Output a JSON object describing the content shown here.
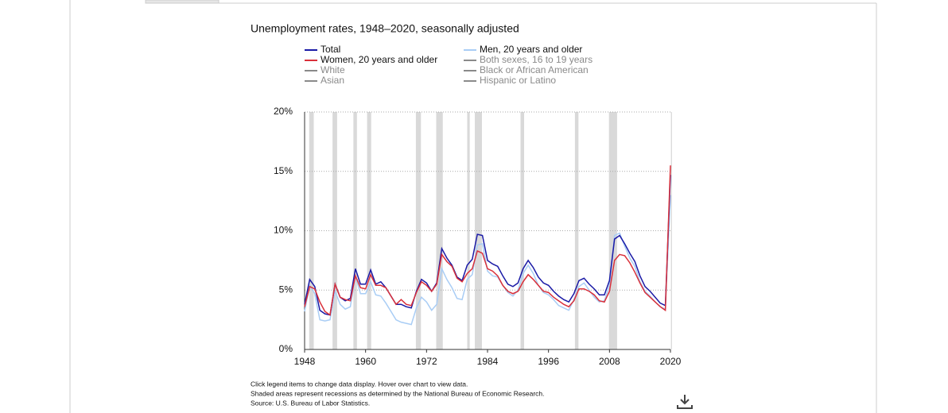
{
  "chart_data": {
    "type": "line",
    "title": "Unemployment rates, 1948–2020, seasonally adjusted",
    "x": [
      1948,
      1949,
      1950,
      1951,
      1952,
      1953,
      1954,
      1955,
      1956,
      1957,
      1958,
      1959,
      1960,
      1961,
      1962,
      1963,
      1964,
      1965,
      1966,
      1967,
      1968,
      1969,
      1970,
      1971,
      1972,
      1973,
      1974,
      1975,
      1976,
      1977,
      1978,
      1979,
      1980,
      1981,
      1982,
      1983,
      1984,
      1985,
      1986,
      1987,
      1988,
      1989,
      1990,
      1991,
      1992,
      1993,
      1994,
      1995,
      1996,
      1997,
      1998,
      1999,
      2000,
      2001,
      2002,
      2003,
      2004,
      2005,
      2006,
      2007,
      2008,
      2009,
      2010,
      2011,
      2012,
      2013,
      2014,
      2015,
      2016,
      2017,
      2018,
      2019,
      2020
    ],
    "series": [
      {
        "name": "Total",
        "color": "#1a1aa6",
        "values": [
          3.8,
          5.9,
          5.3,
          3.3,
          3.0,
          2.9,
          5.5,
          4.4,
          4.1,
          4.3,
          6.8,
          5.5,
          5.5,
          6.7,
          5.5,
          5.7,
          5.2,
          4.5,
          3.8,
          3.8,
          3.6,
          3.5,
          4.9,
          5.9,
          5.6,
          4.9,
          5.6,
          8.5,
          7.7,
          7.1,
          6.1,
          5.8,
          7.1,
          7.6,
          9.7,
          9.6,
          7.5,
          7.2,
          7.0,
          6.2,
          5.5,
          5.3,
          5.6,
          6.8,
          7.5,
          6.9,
          6.1,
          5.6,
          5.4,
          4.9,
          4.5,
          4.2,
          4.0,
          4.7,
          5.8,
          6.0,
          5.5,
          5.1,
          4.6,
          4.6,
          5.8,
          9.3,
          9.6,
          8.9,
          8.1,
          7.4,
          6.2,
          5.3,
          4.9,
          4.4,
          3.9,
          3.7,
          14.7
        ]
      },
      {
        "name": "Men, 20 years and older",
        "color": "#a9cdf5",
        "values": [
          3.2,
          5.4,
          4.7,
          2.5,
          2.4,
          2.5,
          4.9,
          3.8,
          3.4,
          3.6,
          6.2,
          4.7,
          4.7,
          5.7,
          4.6,
          4.5,
          3.9,
          3.2,
          2.5,
          2.3,
          2.2,
          2.1,
          3.5,
          4.4,
          4.0,
          3.3,
          3.8,
          6.8,
          5.9,
          5.2,
          4.3,
          4.2,
          5.9,
          6.3,
          8.8,
          8.9,
          6.6,
          6.2,
          6.1,
          5.4,
          4.8,
          4.5,
          5.0,
          6.4,
          7.1,
          6.4,
          5.4,
          4.8,
          4.6,
          4.2,
          3.7,
          3.5,
          3.3,
          4.2,
          5.3,
          5.6,
          5.0,
          4.4,
          4.0,
          4.1,
          5.4,
          9.6,
          9.8,
          8.7,
          7.7,
          7.0,
          5.7,
          4.9,
          4.5,
          4.0,
          3.6,
          3.4,
          13.0
        ]
      },
      {
        "name": "Women, 20 years and older",
        "color": "#d9303a",
        "values": [
          3.6,
          5.3,
          5.1,
          4.0,
          3.2,
          2.9,
          5.5,
          4.4,
          4.2,
          4.1,
          6.2,
          5.2,
          5.1,
          6.3,
          5.4,
          5.4,
          5.2,
          4.5,
          3.8,
          4.2,
          3.8,
          3.7,
          4.8,
          5.7,
          5.4,
          4.9,
          5.5,
          8.0,
          7.4,
          7.0,
          6.0,
          5.7,
          6.4,
          6.8,
          8.3,
          8.1,
          6.8,
          6.6,
          6.2,
          5.4,
          4.9,
          4.7,
          4.9,
          5.7,
          6.3,
          5.9,
          5.4,
          4.9,
          4.8,
          4.4,
          4.1,
          3.8,
          3.6,
          4.1,
          5.1,
          5.1,
          4.9,
          4.6,
          4.1,
          4.0,
          4.9,
          7.5,
          8.0,
          7.9,
          7.3,
          6.5,
          5.6,
          4.8,
          4.4,
          4.0,
          3.6,
          3.3,
          15.5
        ]
      }
    ],
    "inactive_series": [
      "Both sexes, 16 to 19 years",
      "White",
      "Black or African American",
      "Asian",
      "Hispanic or Latino"
    ],
    "inactive_color": "#8a8a8a",
    "shaded_periods": [
      [
        1948.9,
        1949.8
      ],
      [
        1953.5,
        1954.4
      ],
      [
        1957.6,
        1958.3
      ],
      [
        1960.3,
        1961.1
      ],
      [
        1969.9,
        1970.9
      ],
      [
        1973.9,
        1975.2
      ],
      [
        1980.0,
        1980.5
      ],
      [
        1981.5,
        1982.9
      ],
      [
        1990.5,
        1991.2
      ],
      [
        2001.2,
        2001.9
      ],
      [
        2007.9,
        2009.5
      ],
      [
        2020.1,
        2020.3
      ]
    ],
    "shade_color": "#d9d9d9",
    "xlim": [
      1948,
      2020
    ],
    "xticks": [
      1948,
      1960,
      1972,
      1984,
      1996,
      2008,
      2020
    ],
    "ylim": [
      0,
      20
    ],
    "yticks": [
      {
        "value": 0,
        "label": "0%"
      },
      {
        "value": 5,
        "label": "5%"
      },
      {
        "value": 10,
        "label": "10%"
      },
      {
        "value": 15,
        "label": "15%"
      },
      {
        "value": 20,
        "label": "20%"
      }
    ],
    "grid": true,
    "notes": [
      "Click legend items to change data display. Hover over chart to view data.",
      "Shaded areas represent recessions as determined by the National Bureau of Economic Research.",
      "Source: U.S. Bureau of Labor Statistics."
    ]
  }
}
